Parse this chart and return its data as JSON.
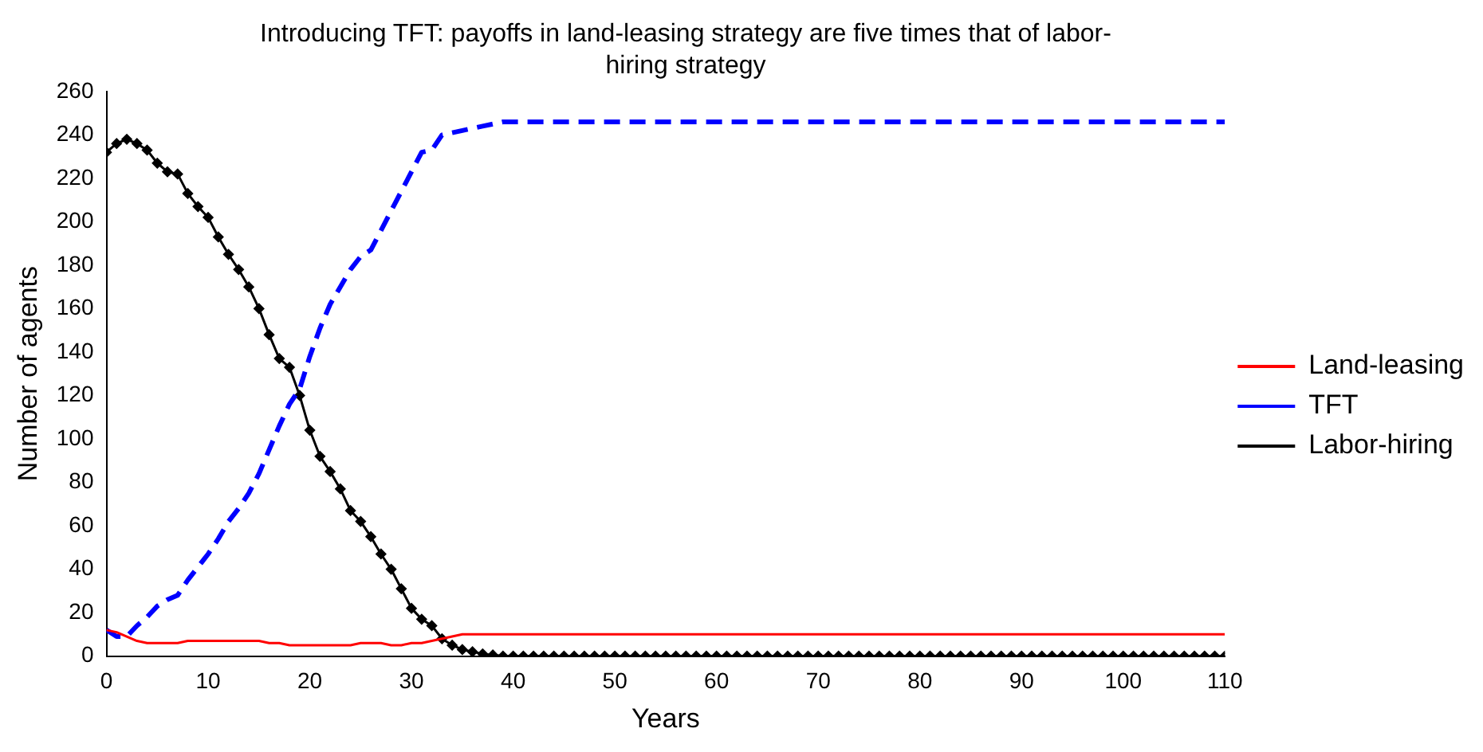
{
  "chart_data": {
    "type": "line",
    "title": "Introducing TFT: payoffs in land-leasing strategy are five times that of labor-hiring strategy",
    "xlabel": "Years",
    "ylabel": "Number of agents",
    "x": [
      0,
      1,
      2,
      3,
      4,
      5,
      6,
      7,
      8,
      9,
      10,
      11,
      12,
      13,
      14,
      15,
      16,
      17,
      18,
      19,
      20,
      21,
      22,
      23,
      24,
      25,
      26,
      27,
      28,
      29,
      30,
      31,
      32,
      33,
      34,
      35,
      36,
      37,
      38,
      39,
      40,
      41,
      42,
      43,
      44,
      45,
      46,
      47,
      48,
      49,
      50,
      51,
      52,
      53,
      54,
      55,
      56,
      57,
      58,
      59,
      60,
      61,
      62,
      63,
      64,
      65,
      66,
      67,
      68,
      69,
      70,
      71,
      72,
      73,
      74,
      75,
      76,
      77,
      78,
      79,
      80,
      81,
      82,
      83,
      84,
      85,
      86,
      87,
      88,
      89,
      90,
      91,
      92,
      93,
      94,
      95,
      96,
      97,
      98,
      99,
      100,
      101,
      102,
      103,
      104,
      105,
      106,
      107,
      108,
      109,
      110
    ],
    "series": [
      {
        "name": "Land-leasing",
        "color": "#ff0000",
        "line_style": "solid",
        "marker": "none",
        "values": [
          12,
          11,
          9,
          7,
          6,
          6,
          6,
          6,
          7,
          7,
          7,
          7,
          7,
          7,
          7,
          7,
          6,
          6,
          5,
          5,
          5,
          5,
          5,
          5,
          5,
          6,
          6,
          6,
          5,
          5,
          6,
          6,
          7,
          8,
          9,
          10,
          10,
          10,
          10,
          10,
          10,
          10,
          10,
          10,
          10,
          10,
          10,
          10,
          10,
          10,
          10,
          10,
          10,
          10,
          10,
          10,
          10,
          10,
          10,
          10,
          10,
          10,
          10,
          10,
          10,
          10,
          10,
          10,
          10,
          10,
          10,
          10,
          10,
          10,
          10,
          10,
          10,
          10,
          10,
          10,
          10,
          10,
          10,
          10,
          10,
          10,
          10,
          10,
          10,
          10,
          10,
          10,
          10,
          10,
          10,
          10,
          10,
          10,
          10,
          10,
          10,
          10,
          10,
          10,
          10,
          10,
          10,
          10,
          10,
          10,
          10
        ]
      },
      {
        "name": "TFT",
        "color": "#0000ff",
        "line_style": "dashed",
        "marker": "none",
        "values": [
          12,
          9,
          9,
          14,
          18,
          23,
          26,
          28,
          35,
          41,
          47,
          54,
          62,
          68,
          75,
          84,
          95,
          106,
          116,
          123,
          138,
          151,
          162,
          170,
          178,
          184,
          187,
          196,
          205,
          214,
          223,
          232,
          233,
          240,
          241,
          242,
          243,
          244,
          245,
          246,
          246,
          246,
          246,
          246,
          246,
          246,
          246,
          246,
          246,
          246,
          246,
          246,
          246,
          246,
          246,
          246,
          246,
          246,
          246,
          246,
          246,
          246,
          246,
          246,
          246,
          246,
          246,
          246,
          246,
          246,
          246,
          246,
          246,
          246,
          246,
          246,
          246,
          246,
          246,
          246,
          246,
          246,
          246,
          246,
          246,
          246,
          246,
          246,
          246,
          246,
          246,
          246,
          246,
          246,
          246,
          246,
          246,
          246,
          246,
          246,
          246,
          246,
          246,
          246,
          246,
          246,
          246,
          246,
          246,
          246,
          246
        ]
      },
      {
        "name": "Labor-hiring",
        "color": "#000000",
        "line_style": "solid",
        "marker": "diamond",
        "values": [
          232,
          236,
          238,
          236,
          233,
          227,
          223,
          222,
          213,
          207,
          202,
          193,
          185,
          178,
          170,
          160,
          148,
          137,
          133,
          120,
          104,
          92,
          85,
          77,
          67,
          62,
          55,
          47,
          40,
          31,
          22,
          17,
          14,
          8,
          5,
          3,
          2,
          1,
          0.5,
          0,
          0,
          0,
          0,
          0,
          0,
          0,
          0,
          0,
          0,
          0,
          0,
          0,
          0,
          0,
          0,
          0,
          0,
          0,
          0,
          0,
          0,
          0,
          0,
          0,
          0,
          0,
          0,
          0,
          0,
          0,
          0,
          0,
          0,
          0,
          0,
          0,
          0,
          0,
          0,
          0,
          0,
          0,
          0,
          0,
          0,
          0,
          0,
          0,
          0,
          0,
          0,
          0,
          0,
          0,
          0,
          0,
          0,
          0,
          0,
          0,
          0,
          0,
          0,
          0,
          0,
          0,
          0,
          0,
          0,
          0,
          0
        ]
      }
    ],
    "xlim": [
      0,
      110
    ],
    "xticks": [
      0,
      10,
      20,
      30,
      40,
      50,
      60,
      70,
      80,
      90,
      100,
      110
    ],
    "ylim": [
      0,
      260
    ],
    "yticks": [
      0,
      20,
      40,
      60,
      80,
      100,
      120,
      140,
      160,
      180,
      200,
      220,
      240,
      260
    ],
    "grid": false,
    "legend": "right"
  }
}
